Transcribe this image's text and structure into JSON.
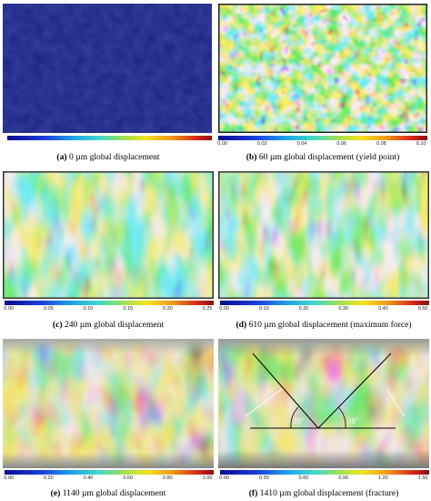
{
  "panels": [
    {
      "letter": "(a)",
      "caption": "0 µm global displacement",
      "ticks": []
    },
    {
      "letter": "(b)",
      "caption": "60 µm global displacement (yield point)",
      "ticks": [
        "0.00",
        "0.02",
        "0.04",
        "0.06",
        "0.08",
        "0.10"
      ]
    },
    {
      "letter": "(c)",
      "caption": "240 µm global displacement",
      "ticks": [
        "0.00",
        "0.05",
        "0.10",
        "0.15",
        "0.20",
        "0.25"
      ]
    },
    {
      "letter": "(d)",
      "caption": "610 µm global displacement (maximum force)",
      "ticks": [
        "0.00",
        "0.10",
        "0.20",
        "0.30",
        "0.40",
        "0.50"
      ]
    },
    {
      "letter": "(e)",
      "caption": "1140 µm global displacement",
      "ticks": [
        "0.00",
        "0.20",
        "0.40",
        "0.60",
        "0.80",
        "1.00"
      ]
    },
    {
      "letter": "(f)",
      "caption": "1410 µm global displacement (fracture)",
      "ticks": [
        "0.00",
        "0.30",
        "0.60",
        "0.90",
        "1.20",
        "1.50"
      ]
    }
  ],
  "angle_labels": {
    "left": "38°",
    "right": "38°"
  },
  "colors": {
    "deep_blue": "#1a2388",
    "blue": "#1f4fe0",
    "cyan": "#37c3da",
    "green": "#7fd24a",
    "yellow": "#f0dd1f",
    "red": "#d6261b",
    "dark_red": "#8a0f0f"
  }
}
